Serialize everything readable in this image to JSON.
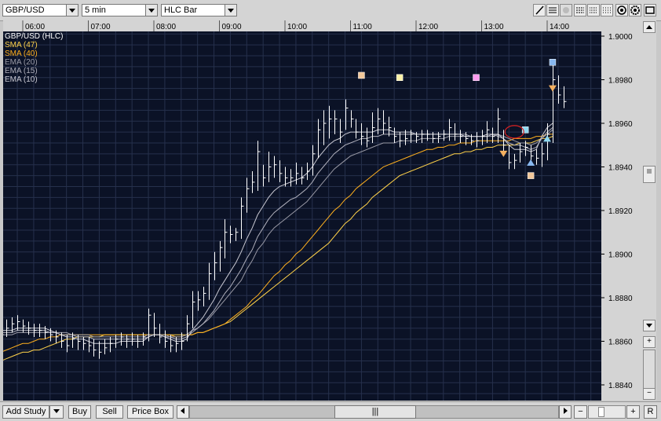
{
  "toolbar": {
    "symbol": "GBP/USD",
    "interval": "5 min",
    "chart_style": "HLC Bar"
  },
  "chart": {
    "header": "GBP/USD (HLC)",
    "studies": [
      {
        "label": "SMA (47)",
        "color": "#ffd24a"
      },
      {
        "label": "SMA (40)",
        "color": "#ffb01e"
      },
      {
        "label": "EMA (20)",
        "color": "#9a9aa6"
      },
      {
        "label": "EMA (15)",
        "color": "#b0b0bc"
      },
      {
        "label": "EMA (10)",
        "color": "#c8c8d2"
      }
    ],
    "time_labels": [
      "06:00",
      "07:00",
      "08:00",
      "09:00",
      "10:00",
      "11:00",
      "12:00",
      "13:00",
      "14:00"
    ],
    "price_labels": [
      "1.9000",
      "1.8980",
      "1.8960",
      "1.8940",
      "1.8920",
      "1.8900",
      "1.8880",
      "1.8860",
      "1.8840"
    ]
  },
  "chart_data": {
    "type": "ohlc",
    "title": "GBP/USD (HLC)",
    "xlabel": "",
    "ylabel": "",
    "interval": "5 min",
    "ylim": [
      1.8836,
      1.901
    ],
    "x_ticks": [
      "06:00",
      "07:00",
      "08:00",
      "09:00",
      "10:00",
      "11:00",
      "12:00",
      "13:00",
      "14:00"
    ],
    "grid": true,
    "bars_start": "05:40",
    "bars": [
      [
        1.8867,
        1.8859,
        1.8863
      ],
      [
        1.887,
        1.8862,
        1.8866
      ],
      [
        1.8871,
        1.8864,
        1.8868
      ],
      [
        1.8872,
        1.8865,
        1.8869
      ],
      [
        1.887,
        1.8864,
        1.8867
      ],
      [
        1.8869,
        1.8863,
        1.8866
      ],
      [
        1.8868,
        1.8862,
        1.8865
      ],
      [
        1.8868,
        1.8862,
        1.8865
      ],
      [
        1.8867,
        1.8861,
        1.8864
      ],
      [
        1.8866,
        1.886,
        1.8863
      ],
      [
        1.8865,
        1.8859,
        1.8862
      ],
      [
        1.8864,
        1.8857,
        1.886
      ],
      [
        1.8863,
        1.8855,
        1.8858
      ],
      [
        1.8864,
        1.8857,
        1.8861
      ],
      [
        1.8863,
        1.8856,
        1.886
      ],
      [
        1.8862,
        1.8856,
        1.8859
      ],
      [
        1.8862,
        1.8855,
        1.8858
      ],
      [
        1.8861,
        1.8853,
        1.8856
      ],
      [
        1.886,
        1.8852,
        1.8855
      ],
      [
        1.8861,
        1.8854,
        1.8857
      ],
      [
        1.8862,
        1.8855,
        1.8859
      ],
      [
        1.8863,
        1.8857,
        1.8861
      ],
      [
        1.8864,
        1.8858,
        1.8862
      ],
      [
        1.8863,
        1.8857,
        1.8861
      ],
      [
        1.8864,
        1.8858,
        1.8861
      ],
      [
        1.8863,
        1.8857,
        1.886
      ],
      [
        1.8864,
        1.8858,
        1.8862
      ],
      [
        1.8875,
        1.886,
        1.8872
      ],
      [
        1.8873,
        1.8862,
        1.8866
      ],
      [
        1.8868,
        1.8859,
        1.8862
      ],
      [
        1.8865,
        1.8857,
        1.886
      ],
      [
        1.8863,
        1.8855,
        1.8858
      ],
      [
        1.8862,
        1.8855,
        1.8859
      ],
      [
        1.8864,
        1.8856,
        1.886
      ],
      [
        1.8872,
        1.886,
        1.8868
      ],
      [
        1.8883,
        1.8866,
        1.8878
      ],
      [
        1.8883,
        1.8874,
        1.8879
      ],
      [
        1.8885,
        1.8876,
        1.8882
      ],
      [
        1.8896,
        1.8879,
        1.8891
      ],
      [
        1.8901,
        1.8888,
        1.8896
      ],
      [
        1.8906,
        1.8892,
        1.8903
      ],
      [
        1.8916,
        1.8898,
        1.891
      ],
      [
        1.8913,
        1.8905,
        1.8909
      ],
      [
        1.8912,
        1.8906,
        1.891
      ],
      [
        1.8926,
        1.8907,
        1.8922
      ],
      [
        1.8935,
        1.8919,
        1.893
      ],
      [
        1.8938,
        1.8928,
        1.8933
      ],
      [
        1.8952,
        1.8929,
        1.8947
      ],
      [
        1.8941,
        1.8931,
        1.8935
      ],
      [
        1.8947,
        1.8933,
        1.894
      ],
      [
        1.8945,
        1.8935,
        1.8941
      ],
      [
        1.8943,
        1.8933,
        1.8937
      ],
      [
        1.894,
        1.8931,
        1.8935
      ],
      [
        1.8939,
        1.8931,
        1.8935
      ],
      [
        1.8942,
        1.8932,
        1.8937
      ],
      [
        1.894,
        1.8932,
        1.8935
      ],
      [
        1.8942,
        1.8934,
        1.8938
      ],
      [
        1.895,
        1.8936,
        1.8946
      ],
      [
        1.8962,
        1.8944,
        1.8957
      ],
      [
        1.8966,
        1.895,
        1.896
      ],
      [
        1.8968,
        1.8953,
        1.8962
      ],
      [
        1.8966,
        1.8955,
        1.8962
      ],
      [
        1.8962,
        1.8951,
        1.8956
      ],
      [
        1.8971,
        1.8957,
        1.8967
      ],
      [
        1.8966,
        1.8958,
        1.8962
      ],
      [
        1.8962,
        1.8953,
        1.8956
      ],
      [
        1.896,
        1.895,
        1.8954
      ],
      [
        1.8958,
        1.8949,
        1.8952
      ],
      [
        1.8965,
        1.8951,
        1.8958
      ],
      [
        1.8967,
        1.8955,
        1.8962
      ],
      [
        1.8966,
        1.8955,
        1.896
      ],
      [
        1.8963,
        1.8954,
        1.8958
      ],
      [
        1.8958,
        1.8951,
        1.8954
      ],
      [
        1.8956,
        1.8949,
        1.8952
      ],
      [
        1.8957,
        1.895,
        1.8953
      ],
      [
        1.8957,
        1.8951,
        1.8955
      ],
      [
        1.8956,
        1.8951,
        1.8954
      ],
      [
        1.8957,
        1.8951,
        1.8955
      ],
      [
        1.8957,
        1.8952,
        1.8955
      ],
      [
        1.8956,
        1.8951,
        1.8953
      ],
      [
        1.8956,
        1.8951,
        1.8954
      ],
      [
        1.8957,
        1.8952,
        1.8955
      ],
      [
        1.8962,
        1.8952,
        1.8958
      ],
      [
        1.896,
        1.8952,
        1.8955
      ],
      [
        1.8957,
        1.8951,
        1.8954
      ],
      [
        1.8956,
        1.895,
        1.8953
      ],
      [
        1.8955,
        1.895,
        1.8952
      ],
      [
        1.8956,
        1.8949,
        1.8952
      ],
      [
        1.8957,
        1.895,
        1.8954
      ],
      [
        1.8961,
        1.8951,
        1.8957
      ],
      [
        1.8958,
        1.8951,
        1.8954
      ],
      [
        1.8967,
        1.8951,
        1.8962
      ],
      [
        1.8957,
        1.8946,
        1.895
      ],
      [
        1.895,
        1.8939,
        1.8942
      ],
      [
        1.8946,
        1.8939,
        1.8943
      ],
      [
        1.8951,
        1.8942,
        1.8947
      ],
      [
        1.8952,
        1.8945,
        1.8949
      ],
      [
        1.895,
        1.8942,
        1.8945
      ],
      [
        1.8948,
        1.8941,
        1.8944
      ],
      [
        1.8951,
        1.894,
        1.8946
      ],
      [
        1.896,
        1.8943,
        1.8955
      ],
      [
        1.8987,
        1.8951,
        1.898
      ],
      [
        1.8982,
        1.8969,
        1.8973
      ],
      [
        1.8977,
        1.8967,
        1.897
      ]
    ],
    "series": [
      {
        "name": "SMA (47)",
        "values": [
          1.8851,
          1.8852,
          1.8853,
          1.8854,
          1.8855,
          1.8855,
          1.8856,
          1.8856,
          1.8857,
          1.8858,
          1.8859,
          1.886,
          1.8861,
          1.8861,
          1.8862,
          1.8862,
          1.8862,
          1.8862,
          1.8862,
          1.8863,
          1.8863,
          1.8863,
          1.8863,
          1.8863,
          1.8863,
          1.8863,
          1.8863,
          1.8863,
          1.8863,
          1.8863,
          1.8863,
          1.8863,
          1.8863,
          1.8863,
          1.8863,
          1.8863,
          1.8864,
          1.8864,
          1.8865,
          1.8866,
          1.8867,
          1.8868,
          1.8869,
          1.8871,
          1.8873,
          1.8875,
          1.8877,
          1.8879,
          1.8881,
          1.8883,
          1.8885,
          1.8887,
          1.8889,
          1.8891,
          1.8893,
          1.8895,
          1.8897,
          1.8899,
          1.8901,
          1.8903,
          1.8905,
          1.8908,
          1.8911,
          1.8914,
          1.8916,
          1.8919,
          1.8921,
          1.8923,
          1.8926,
          1.8928,
          1.893,
          1.8932,
          1.8934,
          1.8936,
          1.8937,
          1.8938,
          1.8939,
          1.894,
          1.8941,
          1.8942,
          1.8943,
          1.8944,
          1.8945,
          1.8946,
          1.8946,
          1.8947,
          1.8947,
          1.8948,
          1.8948,
          1.8949,
          1.8949,
          1.895,
          1.895,
          1.895,
          1.895,
          1.8951,
          1.8951,
          1.8951,
          1.8952,
          1.8953,
          1.8953,
          1.8954
        ]
      },
      {
        "name": "SMA (40)",
        "values": [
          1.8855,
          1.8856,
          1.8857,
          1.8858,
          1.8859,
          1.8859,
          1.886,
          1.8861,
          1.8861,
          1.8862,
          1.8862,
          1.8863,
          1.8863,
          1.8863,
          1.8863,
          1.8863,
          1.8863,
          1.8863,
          1.8863,
          1.8863,
          1.8863,
          1.8863,
          1.8863,
          1.8863,
          1.8863,
          1.8863,
          1.8863,
          1.8863,
          1.8863,
          1.8863,
          1.8863,
          1.8863,
          1.8862,
          1.8862,
          1.8863,
          1.8863,
          1.8864,
          1.8864,
          1.8865,
          1.8866,
          1.8867,
          1.8868,
          1.887,
          1.8872,
          1.8874,
          1.8876,
          1.8879,
          1.8881,
          1.8884,
          1.8887,
          1.889,
          1.8892,
          1.8895,
          1.8897,
          1.89,
          1.8902,
          1.8905,
          1.8908,
          1.8911,
          1.8914,
          1.8917,
          1.892,
          1.8922,
          1.8925,
          1.8927,
          1.893,
          1.8932,
          1.8934,
          1.8936,
          1.8938,
          1.894,
          1.8941,
          1.8942,
          1.8943,
          1.8944,
          1.8945,
          1.8946,
          1.8947,
          1.8948,
          1.8948,
          1.8949,
          1.8949,
          1.895,
          1.895,
          1.8951,
          1.8951,
          1.8951,
          1.8952,
          1.8952,
          1.8952,
          1.8952,
          1.8952,
          1.8952,
          1.8952,
          1.8953,
          1.8953,
          1.8953,
          1.8953,
          1.8954,
          1.8954,
          1.8955,
          1.8955
        ]
      },
      {
        "name": "EMA (20)",
        "values": [
          1.8863,
          1.8863,
          1.8863,
          1.8864,
          1.8864,
          1.8864,
          1.8864,
          1.8864,
          1.8864,
          1.8864,
          1.8864,
          1.8864,
          1.8864,
          1.8863,
          1.8863,
          1.8863,
          1.8863,
          1.8862,
          1.8862,
          1.8862,
          1.8862,
          1.8862,
          1.8862,
          1.8862,
          1.8862,
          1.8862,
          1.8862,
          1.8863,
          1.8863,
          1.8863,
          1.8863,
          1.8862,
          1.8862,
          1.8862,
          1.8863,
          1.8865,
          1.8866,
          1.8868,
          1.887,
          1.8873,
          1.8876,
          1.8879,
          1.8882,
          1.8885,
          1.8888,
          1.8893,
          1.8897,
          1.8902,
          1.8905,
          1.8909,
          1.8912,
          1.8914,
          1.8916,
          1.8918,
          1.892,
          1.8922,
          1.8924,
          1.8927,
          1.893,
          1.8933,
          1.8936,
          1.8939,
          1.8941,
          1.8943,
          1.8945,
          1.8946,
          1.8947,
          1.8948,
          1.8949,
          1.895,
          1.8951,
          1.8951,
          1.8951,
          1.8952,
          1.8952,
          1.8952,
          1.8952,
          1.8953,
          1.8953,
          1.8953,
          1.8953,
          1.8953,
          1.8954,
          1.8954,
          1.8954,
          1.8954,
          1.8954,
          1.8954,
          1.8954,
          1.8954,
          1.8954,
          1.8955,
          1.8954,
          1.8953,
          1.8952,
          1.8951,
          1.8951,
          1.895,
          1.8951,
          1.8953,
          1.8955,
          1.8957
        ]
      },
      {
        "name": "EMA (15)",
        "values": [
          1.8864,
          1.8864,
          1.8864,
          1.8865,
          1.8865,
          1.8865,
          1.8865,
          1.8865,
          1.8865,
          1.8864,
          1.8864,
          1.8863,
          1.8863,
          1.8863,
          1.8862,
          1.8862,
          1.8862,
          1.8861,
          1.8861,
          1.8861,
          1.8861,
          1.8861,
          1.8861,
          1.8861,
          1.8861,
          1.8861,
          1.8861,
          1.8862,
          1.8863,
          1.8863,
          1.8862,
          1.8862,
          1.8861,
          1.8861,
          1.8862,
          1.8864,
          1.8866,
          1.8868,
          1.8871,
          1.8874,
          1.8878,
          1.8882,
          1.8885,
          1.8889,
          1.8893,
          1.8898,
          1.8902,
          1.8908,
          1.8912,
          1.8916,
          1.8919,
          1.8921,
          1.8923,
          1.8925,
          1.8926,
          1.8928,
          1.893,
          1.8933,
          1.8937,
          1.894,
          1.8943,
          1.8946,
          1.8948,
          1.895,
          1.8951,
          1.8952,
          1.8953,
          1.8953,
          1.8954,
          1.8954,
          1.8955,
          1.8955,
          1.8955,
          1.8955,
          1.8955,
          1.8955,
          1.8955,
          1.8955,
          1.8955,
          1.8955,
          1.8955,
          1.8955,
          1.8955,
          1.8955,
          1.8955,
          1.8955,
          1.8954,
          1.8954,
          1.8954,
          1.8954,
          1.8955,
          1.8954,
          1.8953,
          1.8951,
          1.895,
          1.895,
          1.8949,
          1.8948,
          1.8949,
          1.8953,
          1.8956,
          1.8958
        ]
      },
      {
        "name": "EMA (10)",
        "values": [
          1.8865,
          1.8865,
          1.8865,
          1.8866,
          1.8866,
          1.8866,
          1.8866,
          1.8866,
          1.8866,
          1.8865,
          1.8864,
          1.8863,
          1.8862,
          1.8862,
          1.8861,
          1.8861,
          1.886,
          1.8859,
          1.8859,
          1.8859,
          1.8859,
          1.8859,
          1.886,
          1.886,
          1.886,
          1.886,
          1.886,
          1.8862,
          1.8863,
          1.8863,
          1.8862,
          1.8861,
          1.886,
          1.886,
          1.8861,
          1.8865,
          1.8868,
          1.8871,
          1.8875,
          1.8879,
          1.8884,
          1.8888,
          1.8892,
          1.8896,
          1.8901,
          1.8907,
          1.8912,
          1.8918,
          1.8922,
          1.8926,
          1.8929,
          1.8931,
          1.8932,
          1.8933,
          1.8934,
          1.8935,
          1.8937,
          1.894,
          1.8944,
          1.8947,
          1.895,
          1.8952,
          1.8953,
          1.8955,
          1.8956,
          1.8956,
          1.8956,
          1.8956,
          1.8956,
          1.8957,
          1.8957,
          1.8957,
          1.8956,
          1.8956,
          1.8956,
          1.8956,
          1.8955,
          1.8955,
          1.8955,
          1.8955,
          1.8955,
          1.8955,
          1.8955,
          1.8955,
          1.8955,
          1.8954,
          1.8954,
          1.8954,
          1.8954,
          1.8955,
          1.8955,
          1.8955,
          1.8953,
          1.895,
          1.8948,
          1.8948,
          1.8948,
          1.8947,
          1.8948,
          1.8954,
          1.8958,
          1.896
        ]
      }
    ],
    "signals": [
      {
        "shape": "square",
        "color": "#f2c89a",
        "x": "11:10",
        "y": 1.8982
      },
      {
        "shape": "square",
        "color": "#fff2a8",
        "x": "11:45",
        "y": 1.8981
      },
      {
        "shape": "square",
        "color": "#ff9cf0",
        "x": "12:55",
        "y": 1.8981
      },
      {
        "shape": "square",
        "color": "#8fd8f0",
        "x": "13:40",
        "y": 1.8957
      },
      {
        "shape": "square",
        "color": "#f2c89a",
        "x": "13:45",
        "y": 1.8936
      },
      {
        "shape": "square",
        "color": "#88b8f0",
        "x": "14:05",
        "y": 1.8988
      },
      {
        "shape": "triangle-down",
        "color": "#f4b060",
        "x": "13:20",
        "y": 1.8946
      },
      {
        "shape": "triangle-down",
        "color": "#f4b060",
        "x": "14:05",
        "y": 1.8976
      },
      {
        "shape": "triangle-up",
        "color": "#88b8f0",
        "x": "13:45",
        "y": 1.8942
      },
      {
        "shape": "triangle-up",
        "color": "#8fd8f0",
        "x": "14:00",
        "y": 1.8953
      }
    ],
    "highlight": {
      "shape": "ellipse",
      "color": "#dd2222",
      "x": "13:30",
      "y": 1.8955
    }
  },
  "bottom": {
    "add_study": "Add Study",
    "buy": "Buy",
    "sell": "Sell",
    "price_box": "Price Box",
    "zoom_out": "−",
    "zoom_in": "+",
    "reset": "R",
    "scroll_grip": "|||"
  },
  "right_panel": {
    "zoom_in": "+",
    "zoom_out": "−"
  },
  "colors": {
    "plot_bg": "#0b1226",
    "grid": "#26304c",
    "bar": "#ffffff",
    "axis_bg": "#d4d4d4"
  }
}
